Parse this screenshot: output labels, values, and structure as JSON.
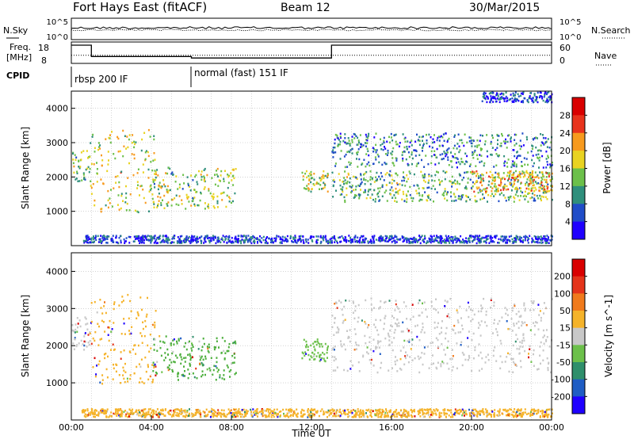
{
  "header": {
    "station": "Fort Hays East (fitACF)",
    "beam": "Beam 12",
    "date": "30/Mar/2015"
  },
  "chart_data": [
    {
      "type": "line",
      "panel": "noise",
      "left_label": "N.Sky",
      "right_label": "N.Search",
      "left_ticks": [
        "10^5",
        "10^0"
      ],
      "right_ticks": [
        "10^5",
        "10^0"
      ],
      "series_solid_level": 0.55,
      "series_dotted_level": 0.45
    },
    {
      "type": "line",
      "panel": "frequency",
      "left_label_top": "Freq.",
      "left_label_bottom": "[MHz]",
      "right_label": "Nave",
      "left_ticks": [
        "18",
        "8"
      ],
      "right_ticks": [
        "60",
        "0"
      ],
      "freq_segments": [
        {
          "start_h": 0.0,
          "end_h": 1.0,
          "value": 18
        },
        {
          "start_h": 1.0,
          "end_h": 6.0,
          "value": 10.5
        },
        {
          "start_h": 6.0,
          "end_h": 13.0,
          "value": 9.5
        },
        {
          "start_h": 13.0,
          "end_h": 24.0,
          "value": 18
        }
      ],
      "nave_level": 0.38
    },
    {
      "type": "table",
      "panel": "cpid",
      "label": "CPID",
      "segments": [
        {
          "start_h": 0.0,
          "end_h": 6.0,
          "text": "rbsp 200 IF"
        },
        {
          "start_h": 6.0,
          "end_h": 24.0,
          "text": "normal (fast) 151 IF"
        }
      ]
    },
    {
      "type": "heatmap",
      "panel": "power",
      "ylabel": "Slant Range [km]",
      "ylim": [
        0,
        4500
      ],
      "yticks": [
        1000,
        2000,
        3000,
        4000
      ],
      "colorbar_label": "Power [dB]",
      "colorbar_ticks": [
        "4",
        "8",
        "12",
        "16",
        "20",
        "24",
        "28"
      ],
      "colorbar_colors": [
        "#1f00ff",
        "#204dc8",
        "#2f8f7c",
        "#6cc04a",
        "#e9d321",
        "#f79a1e",
        "#e8331c",
        "#d90000"
      ],
      "regions": [
        {
          "t0": 0.0,
          "t1": 0.9,
          "r0": 1900,
          "r1": 2800,
          "level": 0.45
        },
        {
          "t0": 0.9,
          "t1": 4.2,
          "r0": 1000,
          "r1": 3400,
          "level": 0.55
        },
        {
          "t0": 4.0,
          "t1": 8.2,
          "r0": 1100,
          "r1": 2300,
          "level": 0.45
        },
        {
          "t0": 11.5,
          "t1": 12.8,
          "r0": 1600,
          "r1": 2200,
          "level": 0.55
        },
        {
          "t0": 13.0,
          "t1": 24.0,
          "r0": 2300,
          "r1": 3300,
          "level": 0.25
        },
        {
          "t0": 13.0,
          "t1": 24.0,
          "r0": 1300,
          "r1": 2200,
          "level": 0.4
        },
        {
          "t0": 20.0,
          "t1": 24.0,
          "r0": 1600,
          "r1": 2200,
          "level": 0.65
        },
        {
          "t0": 0.5,
          "t1": 24.0,
          "r0": 100,
          "r1": 320,
          "level": 0.1
        },
        {
          "t0": 20.5,
          "t1": 24.0,
          "r0": 4200,
          "r1": 4500,
          "level": 0.1
        }
      ]
    },
    {
      "type": "heatmap",
      "panel": "velocity",
      "xlabel": "Time UT",
      "ylabel": "Slant Range [km]",
      "xlim": [
        0,
        24
      ],
      "xticks": [
        "00:00",
        "04:00",
        "08:00",
        "12:00",
        "16:00",
        "20:00",
        "00:00"
      ],
      "ylim": [
        0,
        4500
      ],
      "yticks": [
        1000,
        2000,
        3000,
        4000
      ],
      "colorbar_label": "Velocity [m s^-1]",
      "colorbar_ticks": [
        "200",
        "100",
        "50",
        "15",
        "-15",
        "-50",
        "-100",
        "-200"
      ],
      "colorbar_colors": [
        "#1f00ff",
        "#1f5dc4",
        "#2f8f6b",
        "#6cc04a",
        "#c8c8c8",
        "#f5b32a",
        "#f07a1c",
        "#e4341a",
        "#d90000"
      ],
      "regions": [
        {
          "t0": 0.0,
          "t1": 0.9,
          "r0": 1900,
          "r1": 2800,
          "color": "#c8c8c8"
        },
        {
          "t0": 0.9,
          "t1": 4.2,
          "r0": 1000,
          "r1": 3400,
          "color": "#f5b32a"
        },
        {
          "t0": 4.0,
          "t1": 8.2,
          "r0": 1100,
          "r1": 2300,
          "color": "#4caf3c"
        },
        {
          "t0": 11.5,
          "t1": 12.8,
          "r0": 1600,
          "r1": 2200,
          "color": "#6cc04a"
        },
        {
          "t0": 13.0,
          "t1": 24.0,
          "r0": 1300,
          "r1": 3300,
          "color": "#c8c8c8"
        },
        {
          "t0": 0.5,
          "t1": 24.0,
          "r0": 100,
          "r1": 320,
          "color": "#f5b32a"
        }
      ]
    }
  ]
}
